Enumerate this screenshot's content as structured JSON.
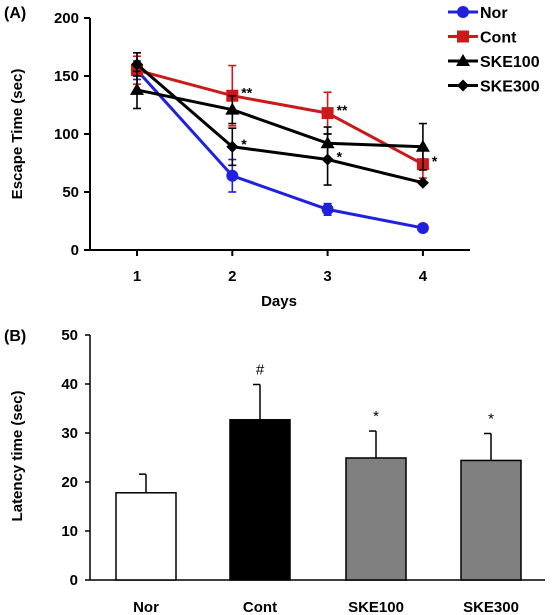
{
  "chart_data": [
    {
      "panel_label": "(A)",
      "type": "line",
      "xlabel": "Days",
      "ylabel": "Escape Time (sec)",
      "x": [
        1,
        2,
        3,
        4
      ],
      "xticks": [
        "1",
        "2",
        "3",
        "4"
      ],
      "ylim": [
        0,
        200
      ],
      "yticks": [
        "0",
        "50",
        "100",
        "150",
        "200"
      ],
      "grid": false,
      "legend_position": "top-right",
      "series": [
        {
          "name": "Nor",
          "color": "#2020E0",
          "marker": "circle",
          "values": [
            155,
            64,
            35,
            19
          ],
          "errors": [
            8,
            14,
            5,
            0
          ],
          "annotations": [
            "",
            "",
            "",
            ""
          ]
        },
        {
          "name": "Cont",
          "color": "#CC1A1A",
          "marker": "square",
          "values": [
            155,
            133,
            118,
            74
          ],
          "errors": [
            12,
            26,
            18,
            12
          ],
          "annotations": [
            "",
            "**",
            "**",
            "*"
          ]
        },
        {
          "name": "SKE100",
          "color": "#000000",
          "marker": "triangle",
          "values": [
            138,
            121,
            92,
            89
          ],
          "errors": [
            16,
            12,
            14,
            20
          ],
          "annotations": [
            "",
            "",
            "",
            ""
          ]
        },
        {
          "name": "SKE300",
          "color": "#000000",
          "marker": "diamond",
          "values": [
            160,
            89,
            78,
            58
          ],
          "errors": [
            10,
            16,
            22,
            0
          ],
          "annotations": [
            "",
            "*",
            "*",
            ""
          ]
        }
      ]
    },
    {
      "panel_label": "(B)",
      "type": "bar",
      "ylabel": "Latency time (sec)",
      "categories": [
        "Nor",
        "Cont",
        "SKE100",
        "SKE300"
      ],
      "values": [
        17.8,
        32.7,
        24.9,
        24.4
      ],
      "errors": [
        3.8,
        7.2,
        5.5,
        5.5
      ],
      "annotations": [
        "",
        "#",
        "*",
        "*"
      ],
      "colors": [
        "#FFFFFF",
        "#000000",
        "#808080",
        "#808080"
      ],
      "ylim": [
        0,
        50
      ],
      "yticks": [
        "0",
        "10",
        "20",
        "30",
        "40",
        "50"
      ],
      "grid": false
    }
  ]
}
